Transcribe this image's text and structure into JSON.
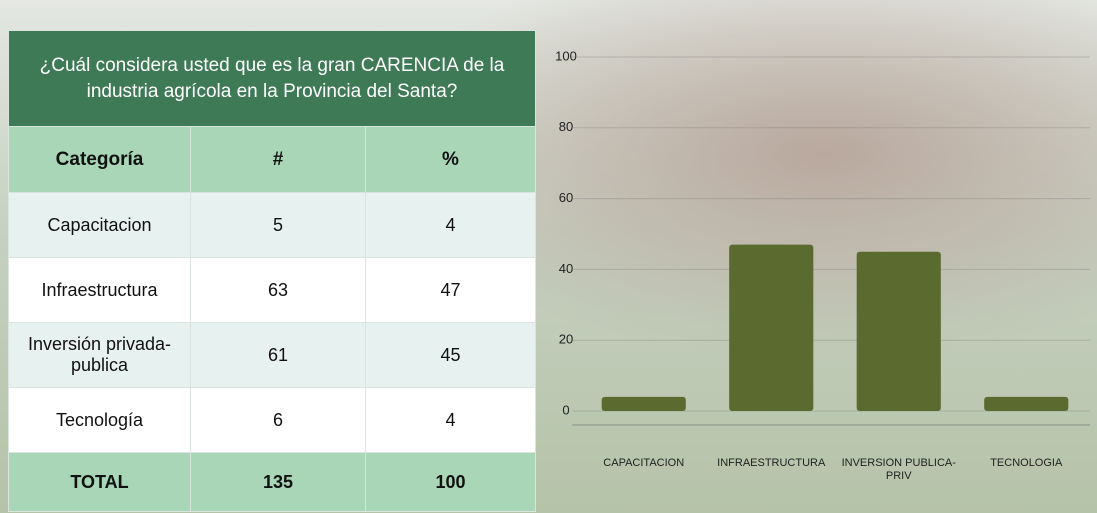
{
  "table": {
    "title": "¿Cuál considera usted que es la gran CARENCIA de la industria agrícola en la Provincia del Santa?",
    "header": [
      "Categoría",
      "#",
      "%"
    ],
    "rows": [
      [
        "Capacitacion",
        "5",
        "4"
      ],
      [
        "Infraestructura",
        "63",
        "47"
      ],
      [
        "Inversión privada-publica",
        "61",
        "45"
      ],
      [
        "Tecnología",
        "6",
        "4"
      ]
    ],
    "total": [
      "TOTAL",
      "135",
      "100"
    ]
  },
  "chart_data": {
    "type": "bar",
    "categories": [
      "CAPACITACION",
      "INFRAESTRUCTURA",
      "INVERSION PUBLICA-PRIV",
      "TECNOLOGIA"
    ],
    "values": [
      4,
      47,
      45,
      4
    ],
    "color": "#5b6b2f",
    "ylim": [
      0,
      100
    ],
    "yticks": [
      0,
      20,
      40,
      60,
      80,
      100
    ],
    "grid": true
  }
}
